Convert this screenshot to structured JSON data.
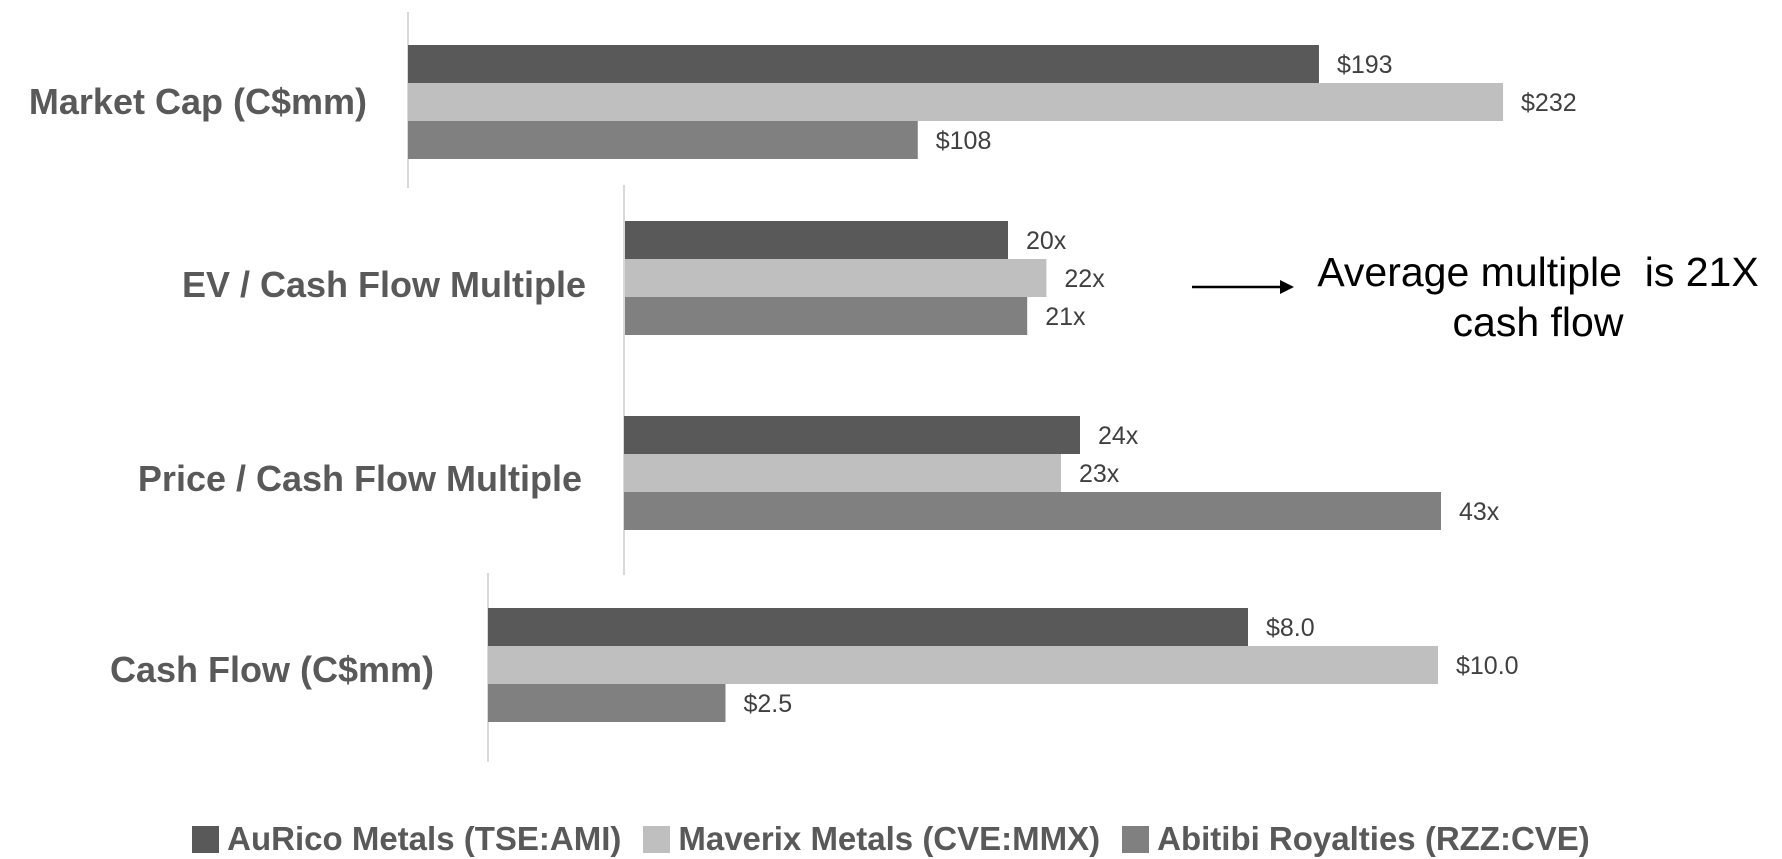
{
  "chart_data": {
    "type": "bar",
    "orientation": "horizontal",
    "legend_position": "bottom",
    "gridlines": false,
    "series": [
      {
        "name": "AuRico Metals (TSE:AMI)",
        "color": "#595959"
      },
      {
        "name": "Maverix Metals (CVE:MMX)",
        "color": "#bfbfbf"
      },
      {
        "name": "Abitibi Royalties (RZZ:CVE)",
        "color": "#808080"
      }
    ],
    "panels": [
      {
        "category": "Market Cap (C$mm)",
        "values": [
          193,
          232,
          108
        ],
        "labels": [
          "$193",
          "$232",
          "$108"
        ]
      },
      {
        "category": "EV / Cash Flow Multiple",
        "values": [
          20,
          22,
          21
        ],
        "labels": [
          "20x",
          "22x",
          "21x"
        ]
      },
      {
        "category": "Price / Cash Flow Multiple",
        "values": [
          24,
          23,
          43
        ],
        "labels": [
          "24x",
          "23x",
          "43x"
        ]
      },
      {
        "category": "Cash Flow (C$mm)",
        "values": [
          8.0,
          10.0,
          2.5
        ],
        "labels": [
          "$8.0",
          "$10.0",
          "$2.5"
        ]
      }
    ],
    "annotation": {
      "line1": "Average multiple  is 21X",
      "line2": "cash flow"
    }
  }
}
